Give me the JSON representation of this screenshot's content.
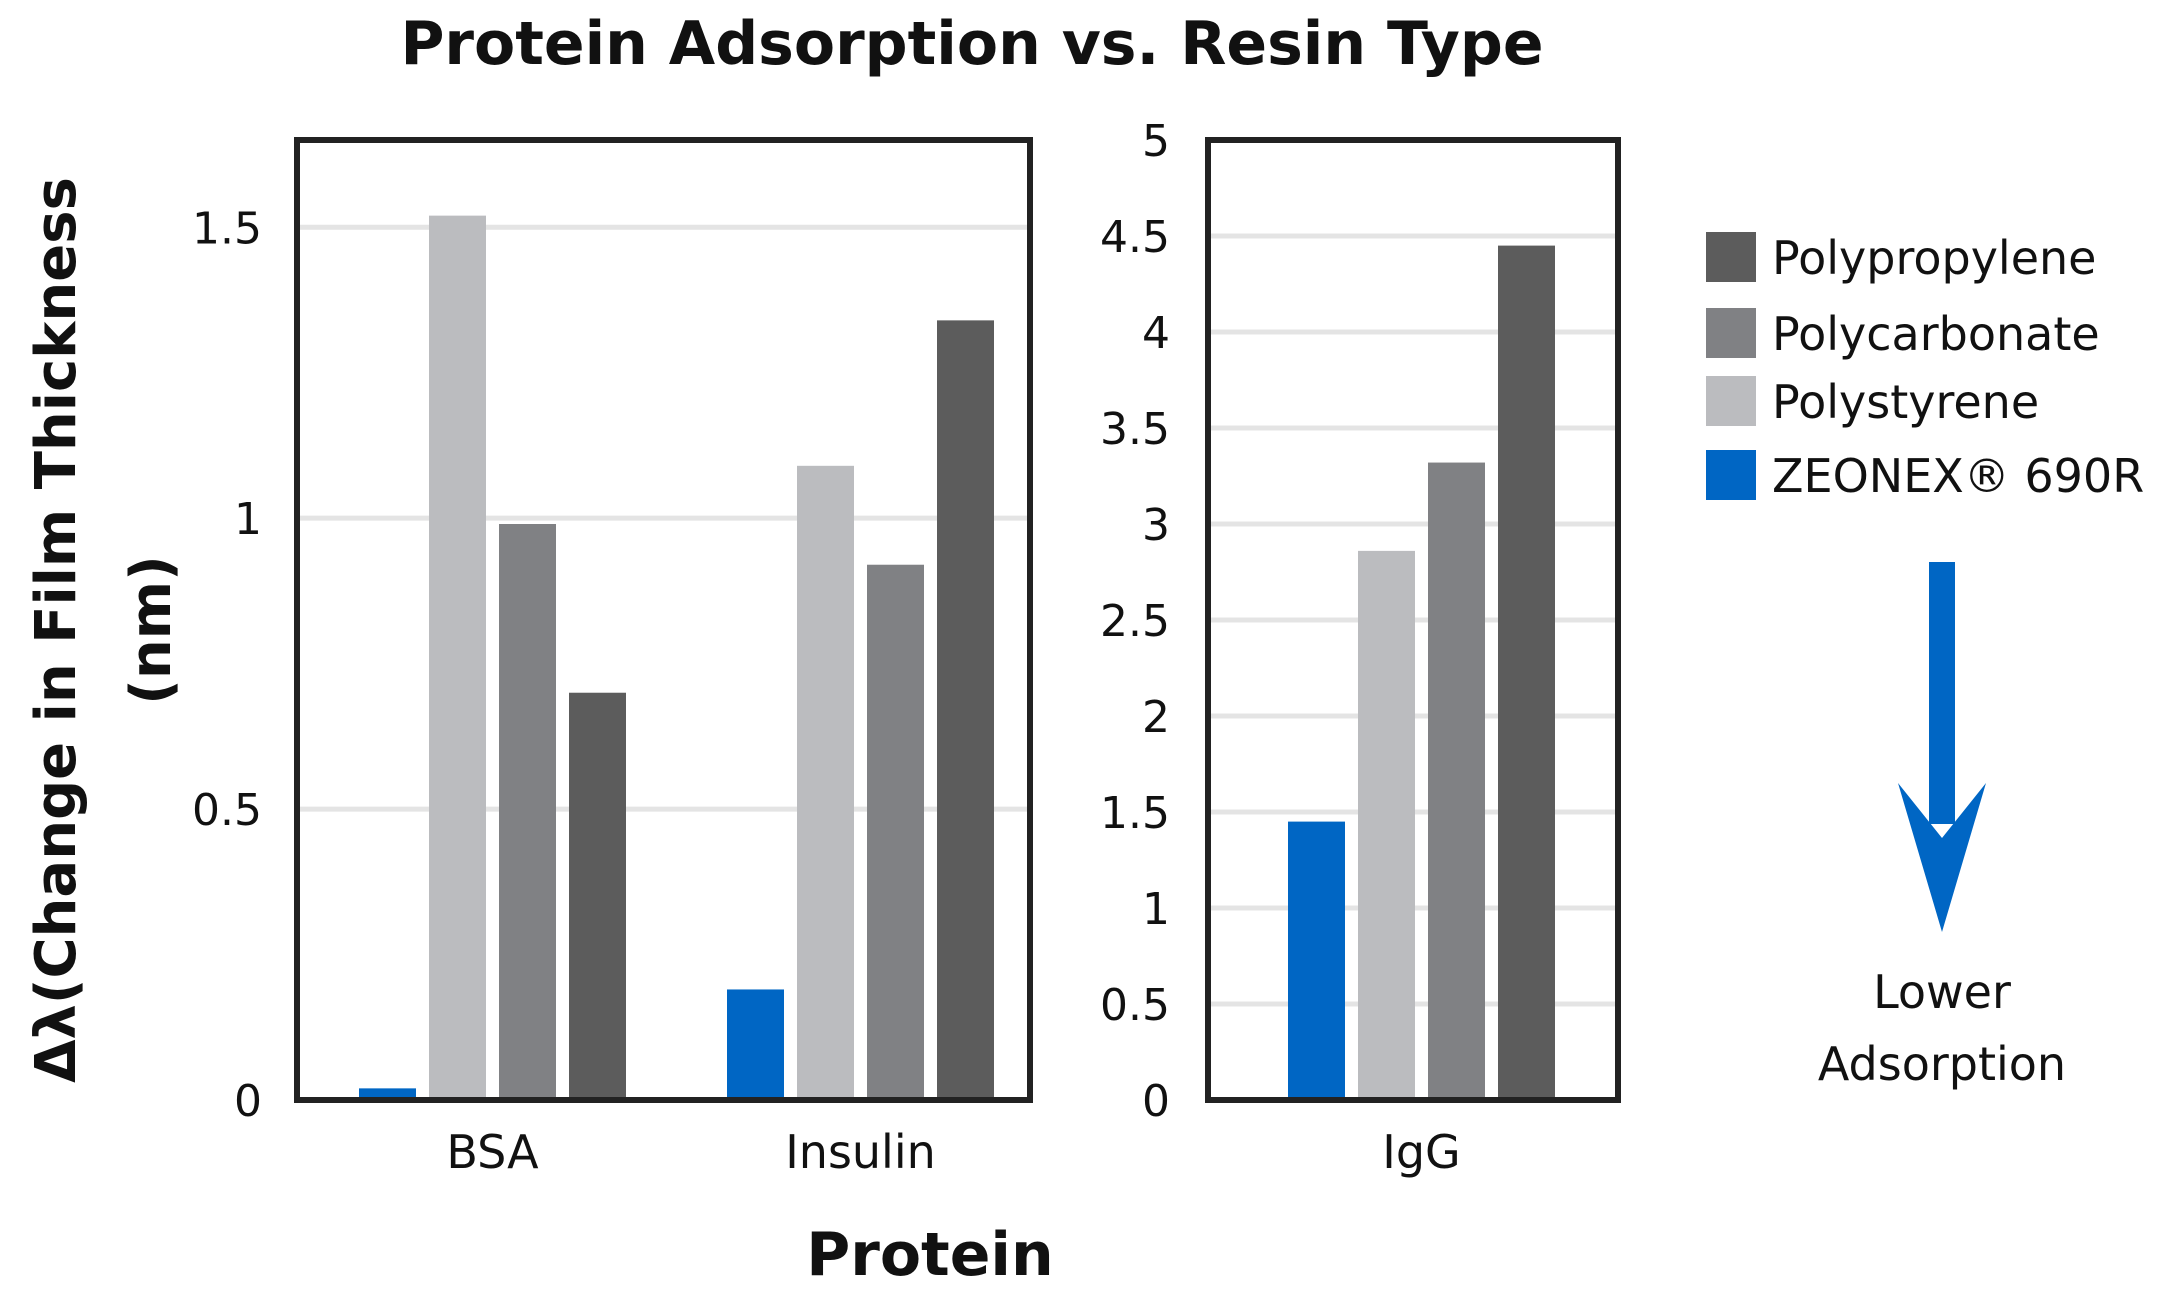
{
  "chart_data": {
    "title": "Protein Adsorption vs. Resin Type",
    "xlabel": "Protein",
    "ylabel_line1": "Δλ(Change in Film Thickness",
    "ylabel_line2": "(nm)",
    "type": "bar",
    "colors": {
      "ZEONEX® 690R": "#0066c4",
      "Polystyrene": "#bbbcbf",
      "Polycarbonate": "#808184",
      "Polypropylene": "#5c5c5c"
    },
    "series_order": [
      "ZEONEX® 690R",
      "Polystyrene",
      "Polycarbonate",
      "Polypropylene"
    ],
    "legend": {
      "placement": "right",
      "entries": [
        {
          "name": "Polypropylene",
          "color": "#5c5c5c"
        },
        {
          "name": "Polycarbonate",
          "color": "#808184"
        },
        {
          "name": "Polystyrene",
          "color": "#bbbcbf"
        },
        {
          "name": "ZEONEX® 690R",
          "color": "#0066c4"
        }
      ]
    },
    "annotation": {
      "line1": "Lower",
      "line2": "Adsorption",
      "arrow_color": "#0066c4"
    },
    "panels": [
      {
        "categories": [
          "BSA",
          "Insulin"
        ],
        "ylim": [
          0,
          1.65
        ],
        "yticks": [
          0,
          0.5,
          1,
          1.5
        ],
        "ytick_labels": [
          "0",
          "0.5",
          "1",
          "1.5"
        ],
        "grid": true,
        "series": [
          {
            "name": "ZEONEX® 690R",
            "values": [
              0.02,
              0.19
            ]
          },
          {
            "name": "Polystyrene",
            "values": [
              1.52,
              1.09
            ]
          },
          {
            "name": "Polycarbonate",
            "values": [
              0.99,
              0.92
            ]
          },
          {
            "name": "Polypropylene",
            "values": [
              0.7,
              1.34
            ]
          }
        ]
      },
      {
        "categories": [
          "IgG"
        ],
        "ylim": [
          0,
          5
        ],
        "yticks": [
          0,
          0.5,
          1,
          1.5,
          2,
          2.5,
          3,
          3.5,
          4,
          4.5,
          5
        ],
        "ytick_labels": [
          "0",
          "0.5",
          "1",
          "1.5",
          "2",
          "2.5",
          "3",
          "3.5",
          "4",
          "4.5",
          "5"
        ],
        "grid": true,
        "series": [
          {
            "name": "ZEONEX® 690R",
            "values": [
              1.45
            ]
          },
          {
            "name": "Polystyrene",
            "values": [
              2.86
            ]
          },
          {
            "name": "Polycarbonate",
            "values": [
              3.32
            ]
          },
          {
            "name": "Polypropylene",
            "values": [
              4.45
            ]
          }
        ]
      }
    ]
  }
}
